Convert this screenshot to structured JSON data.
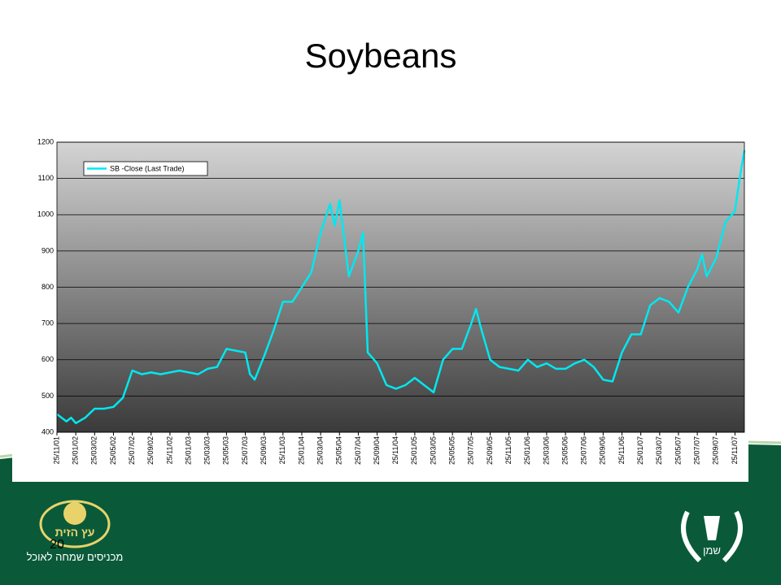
{
  "chart_data": {
    "type": "line",
    "title": "Soybeans",
    "x": [
      0,
      1,
      1.5,
      2,
      3,
      4,
      5,
      6,
      7,
      8,
      9,
      10,
      11,
      12,
      13,
      14,
      15,
      16,
      17,
      18,
      19,
      20,
      20.5,
      21,
      22,
      23,
      24,
      25,
      26,
      27,
      28,
      29,
      29.5,
      30,
      31,
      32,
      32.5,
      33,
      34,
      35,
      36,
      37,
      38,
      39,
      40,
      41,
      42,
      43,
      44,
      44.5,
      45,
      46,
      47,
      48,
      49,
      50,
      51,
      52,
      53,
      54,
      55,
      56,
      57,
      58,
      59,
      60,
      61,
      62,
      63,
      64,
      65,
      66,
      67,
      68,
      68.5,
      69,
      70,
      71,
      72,
      72.5,
      73
    ],
    "series": [
      {
        "name": "SB -Close (Last Trade)",
        "color": "#00e8f0",
        "values": [
          450,
          430,
          440,
          425,
          440,
          465,
          465,
          470,
          495,
          570,
          560,
          565,
          560,
          565,
          570,
          565,
          560,
          575,
          580,
          630,
          625,
          620,
          560,
          545,
          610,
          680,
          760,
          760,
          800,
          840,
          950,
          1030,
          970,
          1040,
          830,
          900,
          950,
          620,
          590,
          530,
          520,
          530,
          550,
          530,
          510,
          600,
          630,
          630,
          700,
          740,
          690,
          600,
          580,
          575,
          570,
          600,
          580,
          590,
          575,
          575,
          590,
          600,
          580,
          545,
          540,
          620,
          670,
          670,
          750,
          770,
          760,
          730,
          800,
          850,
          890,
          830,
          880,
          980,
          1010,
          1100,
          1178
        ]
      }
    ],
    "xlim": [
      0,
      73
    ],
    "xticks": [
      {
        "value": 0,
        "label": "25/11/01"
      },
      {
        "value": 2,
        "label": "25/01/02"
      },
      {
        "value": 4,
        "label": "25/03/02"
      },
      {
        "value": 6,
        "label": "25/05/02"
      },
      {
        "value": 8,
        "label": "25/07/02"
      },
      {
        "value": 10,
        "label": "25/09/02"
      },
      {
        "value": 12,
        "label": "25/11/02"
      },
      {
        "value": 14,
        "label": "25/01/03"
      },
      {
        "value": 16,
        "label": "25/03/03"
      },
      {
        "value": 18,
        "label": "25/05/03"
      },
      {
        "value": 20,
        "label": "25/07/03"
      },
      {
        "value": 22,
        "label": "25/09/03"
      },
      {
        "value": 24,
        "label": "25/11/03"
      },
      {
        "value": 26,
        "label": "25/01/04"
      },
      {
        "value": 28,
        "label": "25/03/04"
      },
      {
        "value": 30,
        "label": "25/05/04"
      },
      {
        "value": 32,
        "label": "25/07/04"
      },
      {
        "value": 34,
        "label": "25/09/04"
      },
      {
        "value": 36,
        "label": "25/11/04"
      },
      {
        "value": 38,
        "label": "25/01/05"
      },
      {
        "value": 40,
        "label": "25/03/05"
      },
      {
        "value": 42,
        "label": "25/05/05"
      },
      {
        "value": 44,
        "label": "25/07/05"
      },
      {
        "value": 46,
        "label": "25/09/05"
      },
      {
        "value": 48,
        "label": "25/11/05"
      },
      {
        "value": 50,
        "label": "25/01/06"
      },
      {
        "value": 52,
        "label": "25/03/06"
      },
      {
        "value": 54,
        "label": "25/05/06"
      },
      {
        "value": 56,
        "label": "25/07/06"
      },
      {
        "value": 58,
        "label": "25/09/06"
      },
      {
        "value": 60,
        "label": "25/11/06"
      },
      {
        "value": 62,
        "label": "25/01/07"
      },
      {
        "value": 64,
        "label": "25/03/07"
      },
      {
        "value": 66,
        "label": "25/05/07"
      },
      {
        "value": 68,
        "label": "25/07/07"
      },
      {
        "value": 70,
        "label": "25/09/07"
      },
      {
        "value": 72,
        "label": "25/11/07"
      }
    ],
    "ylim": [
      400,
      1200
    ],
    "yticks": [
      400,
      500,
      600,
      700,
      800,
      900,
      1000,
      1100,
      1200
    ],
    "grid": true,
    "legend": "top-left"
  },
  "footer": {
    "page_number": "20",
    "left_logo_name": "עץ הזית",
    "left_logo_slogan": "מכניסים שמחה לאוכל",
    "right_logo_name": "שמן"
  }
}
